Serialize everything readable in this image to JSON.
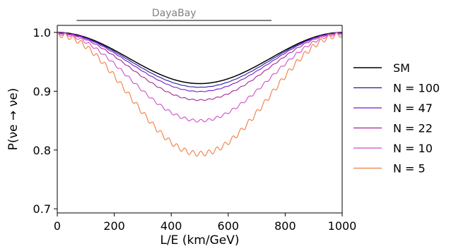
{
  "chart_data": {
    "type": "line",
    "xlabel": "L/E (km/GeV)",
    "ylabel": "P(νe → νe)",
    "xlim": [
      0,
      1000
    ],
    "ylim": [
      0.693,
      1.012
    ],
    "xticks": [
      0,
      200,
      400,
      600,
      800,
      1000
    ],
    "xtick_labels": [
      "0",
      "200",
      "400",
      "600",
      "800",
      "1000"
    ],
    "yticks": [
      0.7,
      0.8,
      0.9,
      1.0
    ],
    "ytick_labels": [
      "0.7",
      "0.8",
      "0.9",
      "1.0"
    ],
    "grid": false,
    "legend_position": "right",
    "annotation": {
      "label": "DayaBay",
      "x_range": [
        68,
        752
      ]
    },
    "model": {
      "sm_amplitude": 0.087,
      "sm_period": 1000,
      "wiggle_amp_per_depth": 0.0018,
      "wiggle_period": 28,
      "envelope_period": 1000
    },
    "series": [
      {
        "name": "SM",
        "color": "#000000",
        "depth": 0.0
      },
      {
        "name": "N = 100",
        "color": "#1e1e9c",
        "depth": 0.006
      },
      {
        "name": "N = 47",
        "color": "#7a17c9",
        "depth": 0.013
      },
      {
        "name": "N = 22",
        "color": "#a32496",
        "depth": 0.027
      },
      {
        "name": "N = 10",
        "color": "#cc4fc9",
        "depth": 0.061
      },
      {
        "name": "N = 5",
        "color": "#f07c41",
        "depth": 0.115
      }
    ]
  }
}
